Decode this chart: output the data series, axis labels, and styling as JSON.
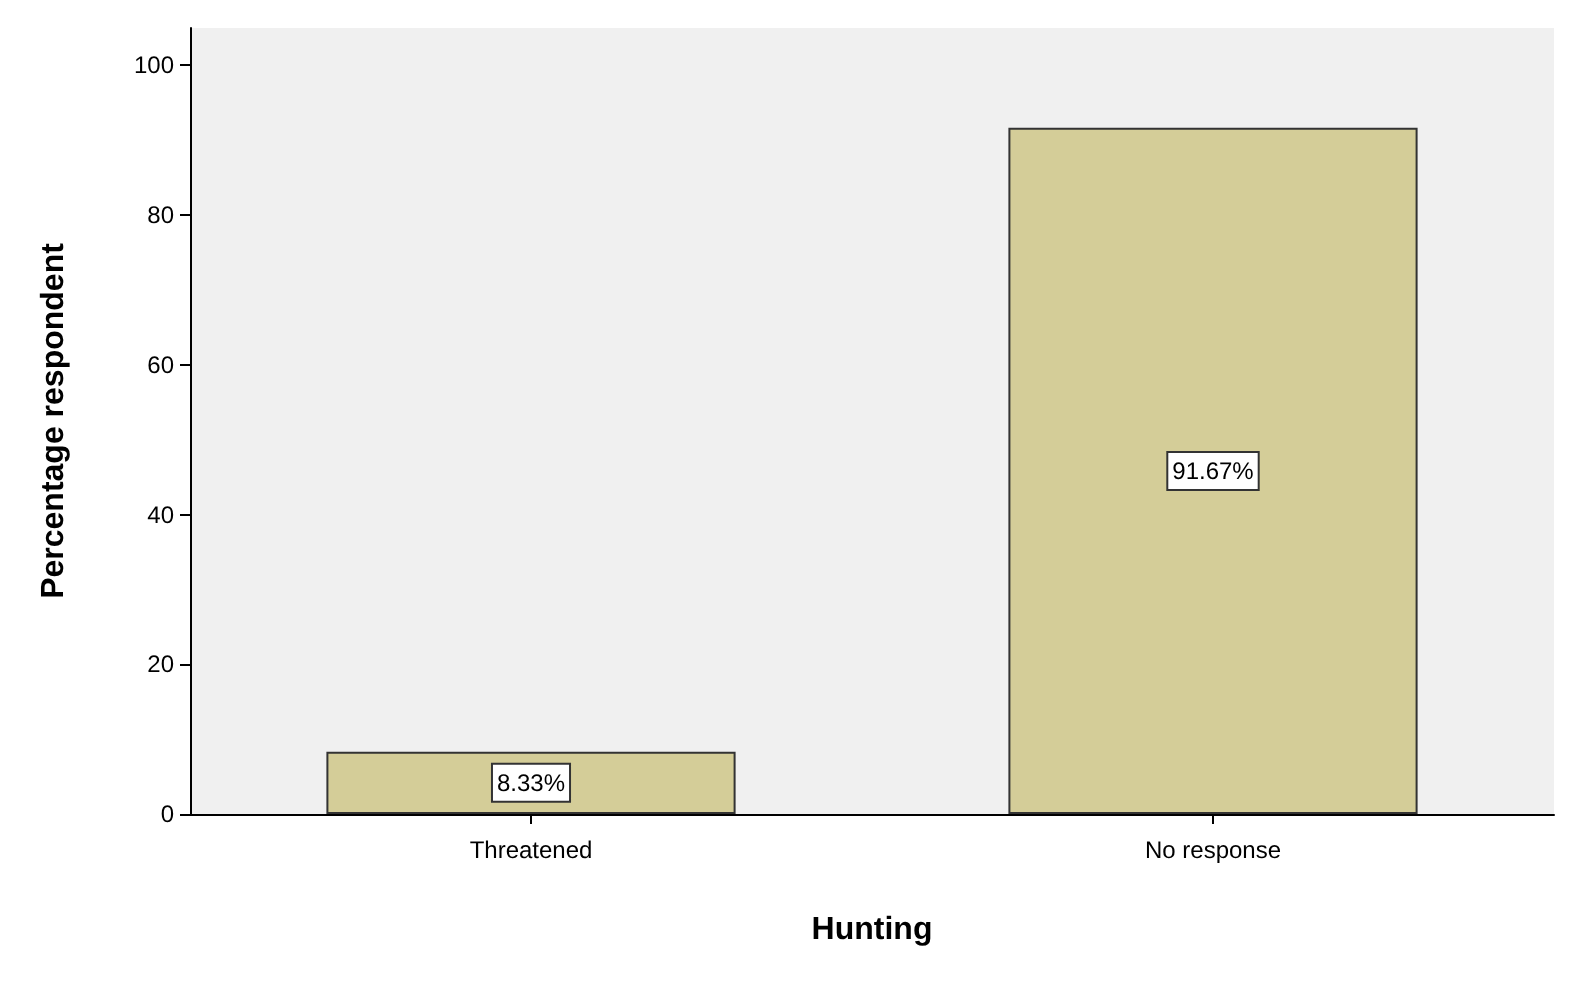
{
  "chart_data": {
    "type": "bar",
    "xlabel": "Hunting",
    "ylabel": "Percentage respondent",
    "categories": [
      "Threatened",
      "No response"
    ],
    "values": [
      8.33,
      91.67
    ],
    "value_labels": [
      "8.33%",
      "91.67%"
    ],
    "color": "#d4cd98",
    "ylim": [
      0,
      105
    ],
    "yticks": [
      0,
      20,
      40,
      60,
      80,
      100
    ]
  }
}
